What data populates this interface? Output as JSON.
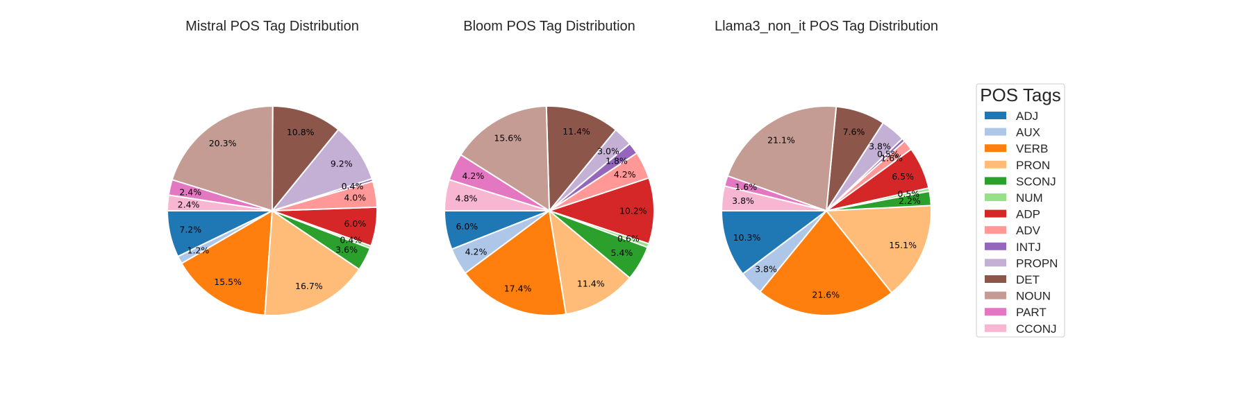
{
  "chart_data": {
    "type": "pie",
    "categories": [
      "ADJ",
      "AUX",
      "VERB",
      "PRON",
      "SCONJ",
      "NUM",
      "ADP",
      "ADV",
      "INTJ",
      "PROPN",
      "DET",
      "NOUN",
      "PART",
      "CCONJ"
    ],
    "colors": [
      "#1f77b4",
      "#aec7e8",
      "#ff7f0e",
      "#ffbb78",
      "#2ca02c",
      "#98df8a",
      "#d62728",
      "#ff9896",
      "#9467bd",
      "#c5b0d5",
      "#8c564b",
      "#c49c94",
      "#e377c2",
      "#f7b6d2"
    ],
    "legend": {
      "title": "POS Tags",
      "placement": "right"
    },
    "charts": [
      {
        "title": "Mistral POS Tag Distribution",
        "values": [
          7.2,
          1.2,
          15.5,
          16.7,
          3.6,
          0.4,
          6.0,
          4.0,
          0.4,
          9.2,
          10.8,
          20.3,
          2.4,
          2.4
        ],
        "labels": [
          "7.2%",
          "1.2%",
          "15.5%",
          "16.7%",
          "3.6%",
          "0.4%",
          "6.0%",
          "4.0%",
          "0.4%",
          "9.2%",
          "10.8%",
          "20.3%",
          "2.4%",
          "2.4%"
        ]
      },
      {
        "title": "Bloom POS Tag Distribution",
        "values": [
          6.0,
          4.2,
          17.4,
          11.4,
          5.4,
          0.6,
          10.2,
          4.2,
          1.8,
          3.0,
          11.4,
          15.6,
          4.2,
          4.8
        ],
        "labels": [
          "6.0%",
          "4.2%",
          "17.4%",
          "11.4%",
          "5.4%",
          "0.6%",
          "10.2%",
          "4.2%",
          "1.8%",
          "3.0%",
          "11.4%",
          "15.6%",
          "4.2%",
          "4.8%"
        ]
      },
      {
        "title": "Llama3_non_it POS Tag Distribution",
        "values": [
          10.3,
          3.8,
          21.6,
          15.1,
          2.2,
          0.5,
          6.5,
          1.6,
          0.5,
          3.8,
          7.6,
          21.1,
          1.6,
          3.8
        ],
        "labels": [
          "10.3%",
          "3.8%",
          "21.6%",
          "15.1%",
          "2.2%",
          "0.5%",
          "6.5%",
          "1.6%",
          "0.5%",
          "3.8%",
          "7.6%",
          "21.1%",
          "1.6%",
          "3.8%"
        ]
      }
    ]
  }
}
